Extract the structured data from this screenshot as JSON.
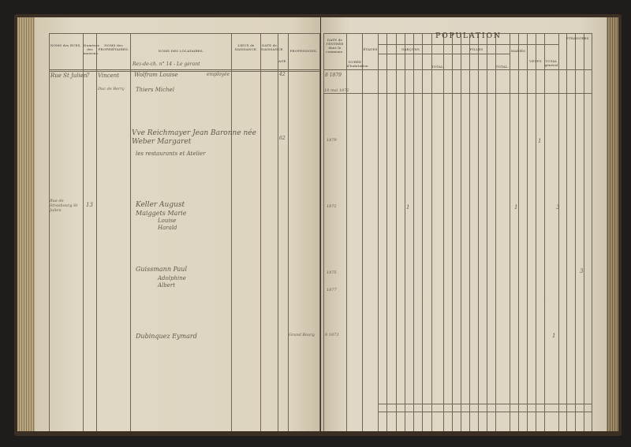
{
  "left_page": {
    "headers": {
      "rues": "NOMS des RUES.",
      "maisons": "Numéros des maisons.",
      "proprietaires": "NOMS des PROPRIÉTAIRES.",
      "locataires": "NOMS DES LOCATAIRES.",
      "lieux": "LIEUX de NAISSANCE.",
      "date": "DATE de NAISSANCE.",
      "age": "AGE.",
      "professions": "PROFESSIONS."
    },
    "entries": [
      "Rue St Julien",
      "7",
      "Vincent",
      "Rez-de-ch. n° 14 - Le gérant",
      "Wolfram Louise",
      "employée",
      "42",
      "Duc de Berry",
      "Thiers Michel",
      "Vve Reichmayer Jean Baronne née Weber Margaret",
      "les restaurants et Atelier",
      "62",
      "Rue de Strasbourg St Julien",
      "13",
      "Keller August",
      "Maiggets Marie",
      "Louise",
      "Harald",
      "Guissmann Paul",
      "Adolphine",
      "Albert",
      "Dubinquez Eymard",
      "Grand Bourg"
    ]
  },
  "right_page": {
    "headers": {
      "date_entree": "DATE de l'ENTRÉE dans la commune.",
      "duree": "DURÉE d'habitation",
      "etages": "ÉTAGES",
      "population": "POPULATION",
      "garcons": "GARÇONS",
      "filles": "FILLES",
      "maries": "MARIÉS",
      "total": "TOTAL.",
      "veufs": "VEUFS",
      "total_general": "TOTAL général",
      "etrangers": "ÉTRANGERS"
    },
    "entries": [
      "8 1879",
      "18 mai 1872",
      "1879",
      "1872",
      "1875",
      "1877",
      "8 1873",
      "1",
      "1",
      "3",
      "1",
      "1",
      "3"
    ]
  }
}
